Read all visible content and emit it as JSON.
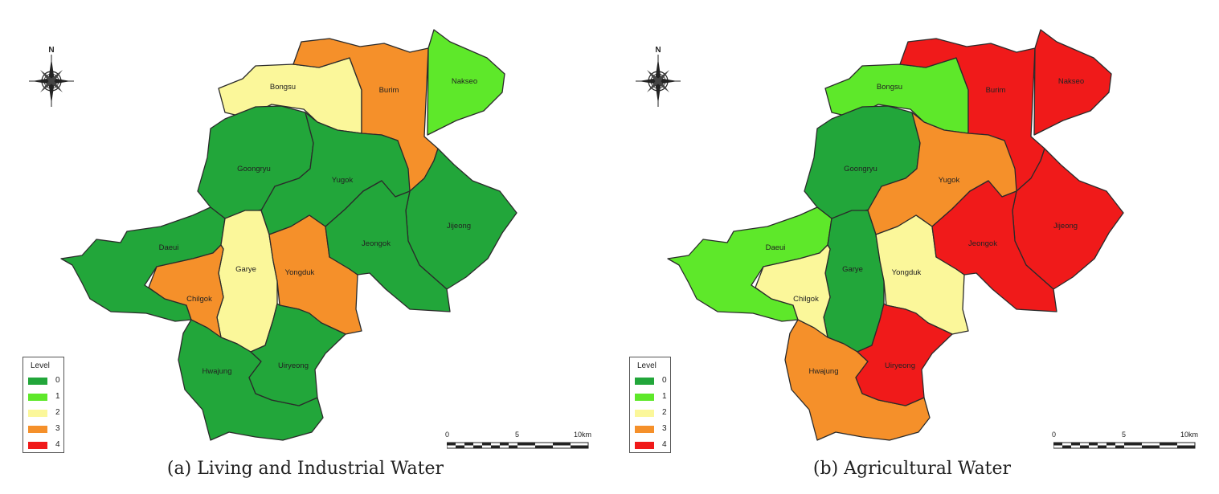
{
  "panels": [
    {
      "caption": "(a) Living and Industrial Water",
      "regions": {
        "bongsu": {
          "label": "Bongsu",
          "level": 2
        },
        "burim": {
          "label": "Burim",
          "level": 3
        },
        "nakseo": {
          "label": "Nakseo",
          "level": 1
        },
        "goongryu": {
          "label": "Goongryu",
          "level": 0
        },
        "yugok": {
          "label": "Yugok",
          "level": 0
        },
        "jijeong": {
          "label": "Jijeong",
          "level": 0
        },
        "daeui": {
          "label": "Daeui",
          "level": 0
        },
        "garye": {
          "label": "Garye",
          "level": 2
        },
        "yongduk": {
          "label": "Yongduk",
          "level": 3
        },
        "jeongok": {
          "label": "Jeongok",
          "level": 0
        },
        "chilgok": {
          "label": "Chilgok",
          "level": 3
        },
        "hwajung": {
          "label": "Hwajung",
          "level": 0
        },
        "uiryeong": {
          "label": "Uiryeong",
          "level": 0
        }
      }
    },
    {
      "caption": "(b) Agricultural Water",
      "regions": {
        "bongsu": {
          "label": "Bongsu",
          "level": 1
        },
        "burim": {
          "label": "Burim",
          "level": 4
        },
        "nakseo": {
          "label": "Nakseo",
          "level": 4
        },
        "goongryu": {
          "label": "Goongryu",
          "level": 0
        },
        "yugok": {
          "label": "Yugok",
          "level": 3
        },
        "jijeong": {
          "label": "Jijeong",
          "level": 4
        },
        "daeui": {
          "label": "Daeui",
          "level": 1
        },
        "garye": {
          "label": "Garye",
          "level": 0
        },
        "yongduk": {
          "label": "Yongduk",
          "level": 2
        },
        "jeongok": {
          "label": "Jeongok",
          "level": 4
        },
        "chilgok": {
          "label": "Chilgok",
          "level": 2
        },
        "hwajung": {
          "label": "Hwajung",
          "level": 3
        },
        "uiryeong": {
          "label": "Uiryeong",
          "level": 4
        }
      }
    }
  ],
  "legend": {
    "title": "Level",
    "items": [
      {
        "label": "0",
        "color": "#22a63a"
      },
      {
        "label": "1",
        "color": "#5ee82a"
      },
      {
        "label": "2",
        "color": "#fbf79a"
      },
      {
        "label": "3",
        "color": "#f5902a"
      },
      {
        "label": "4",
        "color": "#f01a1a"
      }
    ]
  },
  "compass": {
    "label": "N"
  },
  "scale": {
    "labels": [
      "0",
      "5",
      "10km"
    ]
  }
}
